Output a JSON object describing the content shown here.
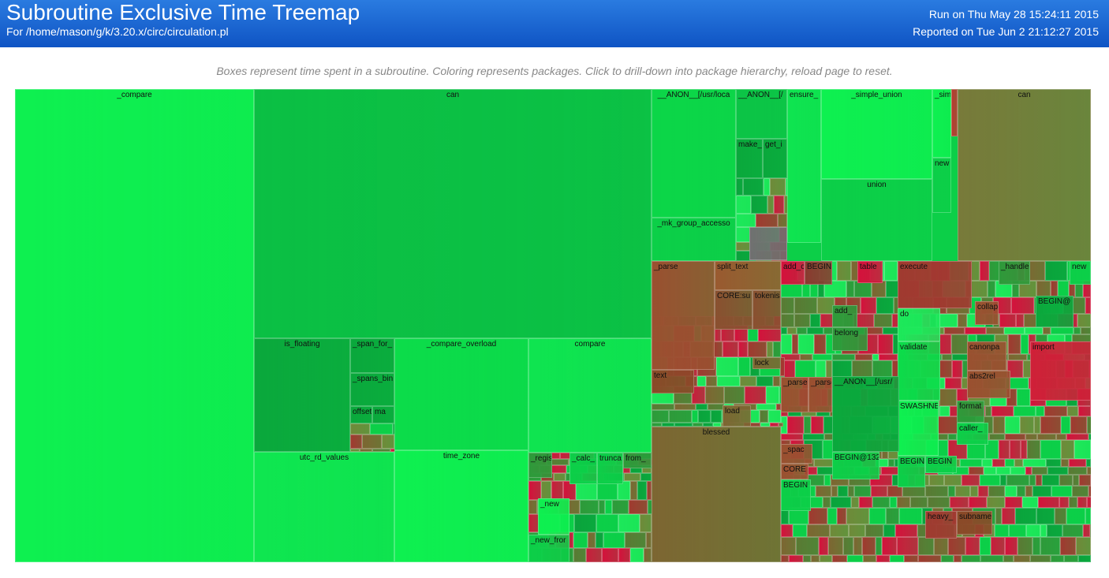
{
  "header": {
    "title": "Subroutine Exclusive Time Treemap",
    "subtitle": "For /home/mason/g/k/3.20.x/circ/circulation.pl",
    "run": "Run on Thu May 28 15:24:11 2015",
    "reported": "Reported on Tue Jun 2 21:12:27 2015"
  },
  "caption": "Boxes represent time spent in a subroutine. Coloring represents packages. Click to drill-down into package hierarchy, reload page to reset.",
  "boxes": [
    "_compare",
    "can",
    "is_floating",
    "_span_for_",
    "_spans_bin",
    "offset_",
    "ma",
    "_compare_overload",
    "compare",
    "utc_rd_values",
    "time_zone",
    "__ANON__[/usr/loca",
    "__ANON__[/",
    "make_",
    "get_i",
    "_mk_group_accesso",
    "ensure_",
    "_simple_union",
    "union",
    "_sim",
    "new",
    "can",
    "_parse",
    "split_text",
    "CORE:su",
    "tokenis",
    "text",
    "blessed",
    "add_c",
    "BEGIN",
    "execute",
    "do",
    "validate",
    "SWASHNE",
    "__ANON__[/usr/",
    "BEGIN@132",
    "import",
    "_handle",
    "new",
    "BEGIN@",
    "_regis",
    "_calc_",
    "trunca",
    "from_",
    "_new",
    "_new_fror",
    "_parse",
    "_parse",
    "BEGIN",
    "_spac",
    "CORE",
    "BEGIN",
    "BEGIN",
    "heavy_",
    "subname",
    "format",
    "caller_",
    "abs2rel",
    "canonpa",
    "belong",
    "load",
    "lock",
    "add_",
    "table",
    "collap"
  ]
}
